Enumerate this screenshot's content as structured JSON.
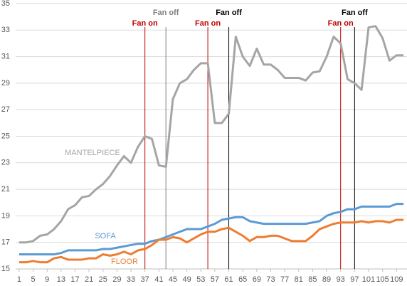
{
  "chart_data": {
    "type": "line",
    "x": [
      1,
      3,
      5,
      7,
      9,
      11,
      13,
      15,
      17,
      19,
      21,
      23,
      25,
      27,
      29,
      31,
      33,
      35,
      37,
      39,
      41,
      43,
      45,
      47,
      49,
      51,
      53,
      55,
      57,
      59,
      61,
      63,
      65,
      67,
      69,
      71,
      73,
      75,
      77,
      79,
      81,
      83,
      85,
      87,
      89,
      91,
      93,
      95,
      97,
      99,
      101,
      103,
      105,
      107,
      109,
      111
    ],
    "series": [
      {
        "name": "MANTELPIECE",
        "color": "#a5a5a5",
        "values": [
          17.0,
          17.0,
          17.1,
          17.5,
          17.6,
          18.0,
          18.6,
          19.5,
          19.8,
          20.4,
          20.5,
          21.0,
          21.4,
          22.0,
          22.8,
          23.5,
          23.0,
          24.2,
          25.0,
          24.8,
          22.8,
          22.7,
          27.8,
          29.0,
          29.3,
          30.0,
          30.5,
          30.5,
          26.0,
          26.0,
          26.7,
          32.5,
          31.0,
          30.3,
          31.6,
          30.4,
          30.4,
          30.0,
          29.4,
          29.4,
          29.4,
          29.2,
          29.8,
          29.9,
          31.0,
          32.5,
          32.0,
          29.3,
          29.0,
          28.5,
          33.2,
          33.3,
          32.4,
          30.7,
          31.1,
          31.1
        ]
      },
      {
        "name": "SOFA",
        "color": "#5b9bd5",
        "values": [
          16.1,
          16.1,
          16.1,
          16.1,
          16.1,
          16.1,
          16.2,
          16.4,
          16.4,
          16.4,
          16.4,
          16.4,
          16.5,
          16.5,
          16.6,
          16.7,
          16.8,
          16.9,
          16.9,
          17.1,
          17.2,
          17.4,
          17.6,
          17.8,
          18.0,
          18.0,
          18.0,
          18.2,
          18.4,
          18.7,
          18.8,
          18.9,
          18.9,
          18.6,
          18.5,
          18.4,
          18.4,
          18.4,
          18.4,
          18.4,
          18.4,
          18.4,
          18.5,
          18.6,
          19.0,
          19.2,
          19.3,
          19.5,
          19.5,
          19.7,
          19.7,
          19.7,
          19.7,
          19.7,
          19.9,
          19.9
        ]
      },
      {
        "name": "FLOOR",
        "color": "#ed7d31",
        "values": [
          15.5,
          15.5,
          15.6,
          15.5,
          15.5,
          15.8,
          15.9,
          15.7,
          15.7,
          15.7,
          15.8,
          15.8,
          16.1,
          16.0,
          16.1,
          16.3,
          16.1,
          16.4,
          16.5,
          16.8,
          17.2,
          17.2,
          17.4,
          17.3,
          17.0,
          17.3,
          17.6,
          17.8,
          17.8,
          18.0,
          18.1,
          17.8,
          17.5,
          17.1,
          17.4,
          17.4,
          17.5,
          17.5,
          17.3,
          17.1,
          17.1,
          17.1,
          17.5,
          18.0,
          18.2,
          18.4,
          18.5,
          18.5,
          18.5,
          18.6,
          18.5,
          18.6,
          18.6,
          18.5,
          18.7,
          18.7
        ]
      }
    ],
    "annotations": [
      {
        "x": 37,
        "label": "Fan on",
        "color": "#c00000"
      },
      {
        "x": 43,
        "label": "Fan off",
        "color": "#808080"
      },
      {
        "x": 55,
        "label": "Fan on",
        "color": "#c00000"
      },
      {
        "x": 61,
        "label": "Fan off",
        "color": "#000000"
      },
      {
        "x": 93,
        "label": "Fan on",
        "color": "#c00000"
      },
      {
        "x": 97,
        "label": "Fan off",
        "color": "#000000"
      }
    ],
    "xlim": [
      0,
      112
    ],
    "xticks": [
      1,
      5,
      9,
      13,
      17,
      21,
      25,
      29,
      33,
      37,
      41,
      45,
      49,
      53,
      57,
      61,
      65,
      69,
      73,
      77,
      81,
      85,
      89,
      93,
      97,
      101,
      105,
      109
    ],
    "ylim": [
      15,
      35
    ],
    "yticks": [
      15,
      17,
      19,
      21,
      23,
      25,
      27,
      29,
      31,
      33,
      35
    ],
    "grid": true
  }
}
